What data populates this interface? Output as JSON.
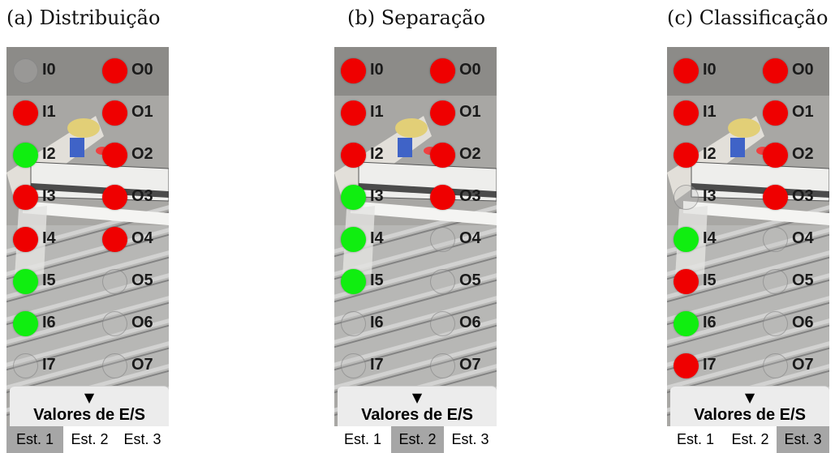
{
  "panels": [
    {
      "caption": "(a) Distribuição",
      "inputs": [
        {
          "label": "I0",
          "state": "off"
        },
        {
          "label": "I1",
          "state": "red"
        },
        {
          "label": "I2",
          "state": "green"
        },
        {
          "label": "I3",
          "state": "red"
        },
        {
          "label": "I4",
          "state": "red"
        },
        {
          "label": "I5",
          "state": "green"
        },
        {
          "label": "I6",
          "state": "green"
        },
        {
          "label": "I7",
          "state": "off"
        }
      ],
      "outputs": [
        {
          "label": "O0",
          "state": "red"
        },
        {
          "label": "O1",
          "state": "red"
        },
        {
          "label": "O2",
          "state": "red"
        },
        {
          "label": "O3",
          "state": "red"
        },
        {
          "label": "O4",
          "state": "red"
        },
        {
          "label": "O5",
          "state": "off"
        },
        {
          "label": "O6",
          "state": "off"
        },
        {
          "label": "O7",
          "state": "off"
        }
      ],
      "active_tab": 0
    },
    {
      "caption": "(b) Separação",
      "inputs": [
        {
          "label": "I0",
          "state": "red"
        },
        {
          "label": "I1",
          "state": "red"
        },
        {
          "label": "I2",
          "state": "red"
        },
        {
          "label": "I3",
          "state": "green"
        },
        {
          "label": "I4",
          "state": "green"
        },
        {
          "label": "I5",
          "state": "green"
        },
        {
          "label": "I6",
          "state": "off"
        },
        {
          "label": "I7",
          "state": "off"
        }
      ],
      "outputs": [
        {
          "label": "O0",
          "state": "red"
        },
        {
          "label": "O1",
          "state": "red"
        },
        {
          "label": "O2",
          "state": "red"
        },
        {
          "label": "O3",
          "state": "red"
        },
        {
          "label": "O4",
          "state": "off"
        },
        {
          "label": "O5",
          "state": "off"
        },
        {
          "label": "O6",
          "state": "off"
        },
        {
          "label": "O7",
          "state": "off"
        }
      ],
      "active_tab": 1
    },
    {
      "caption": "(c) Classificação",
      "inputs": [
        {
          "label": "I0",
          "state": "red"
        },
        {
          "label": "I1",
          "state": "red"
        },
        {
          "label": "I2",
          "state": "red"
        },
        {
          "label": "I3",
          "state": "off"
        },
        {
          "label": "I4",
          "state": "green"
        },
        {
          "label": "I5",
          "state": "red"
        },
        {
          "label": "I6",
          "state": "green"
        },
        {
          "label": "I7",
          "state": "red"
        }
      ],
      "outputs": [
        {
          "label": "O0",
          "state": "red"
        },
        {
          "label": "O1",
          "state": "red"
        },
        {
          "label": "O2",
          "state": "red"
        },
        {
          "label": "O3",
          "state": "red"
        },
        {
          "label": "O4",
          "state": "off"
        },
        {
          "label": "O5",
          "state": "off"
        },
        {
          "label": "O6",
          "state": "off"
        },
        {
          "label": "O7",
          "state": "off"
        }
      ],
      "active_tab": 2
    }
  ],
  "footer": {
    "arrow": "▼",
    "title": "Valores de E/S",
    "tabs": [
      "Est. 1",
      "Est. 2",
      "Est. 3"
    ]
  },
  "colors": {
    "led_red": "#ef0000",
    "led_green": "#10ee10",
    "tab_active": "#a6a6a6",
    "tab_idle": "#ffffff"
  }
}
